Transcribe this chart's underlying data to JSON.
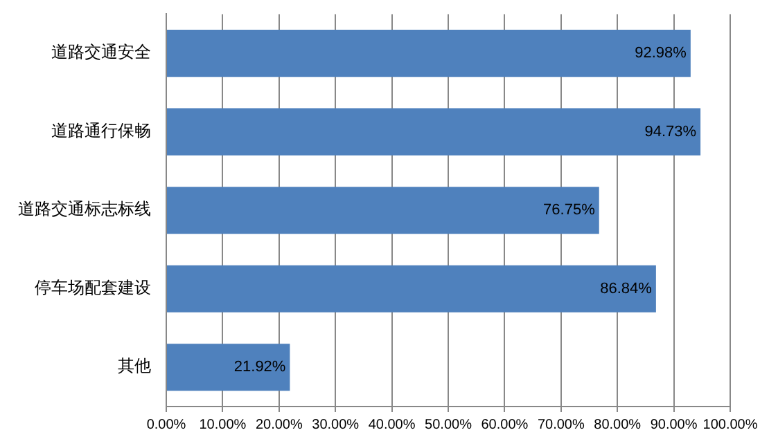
{
  "chart_data": {
    "type": "bar",
    "orientation": "horizontal",
    "categories": [
      "道路交通安全",
      "道路通行保畅",
      "道路交通标志标线",
      "停车场配套建设",
      "其他"
    ],
    "values": [
      92.98,
      94.73,
      76.75,
      86.84,
      21.92
    ],
    "value_labels": [
      "92.98%",
      "94.73%",
      "76.75%",
      "86.84%",
      "21.92%"
    ],
    "color": "#4f81bd",
    "xlim": [
      0,
      100
    ],
    "xticks": [
      {
        "value": 0,
        "label": "0.00%"
      },
      {
        "value": 10,
        "label": "10.00%"
      },
      {
        "value": 20,
        "label": "20.00%"
      },
      {
        "value": 30,
        "label": "30.00%"
      },
      {
        "value": 40,
        "label": "40.00%"
      },
      {
        "value": 50,
        "label": "50.00%"
      },
      {
        "value": 60,
        "label": "60.00%"
      },
      {
        "value": 70,
        "label": "70.00%"
      },
      {
        "value": 80,
        "label": "80.00%"
      },
      {
        "value": 90,
        "label": "90.00%"
      },
      {
        "value": 100,
        "label": "100.00%"
      }
    ],
    "grid": "x"
  }
}
